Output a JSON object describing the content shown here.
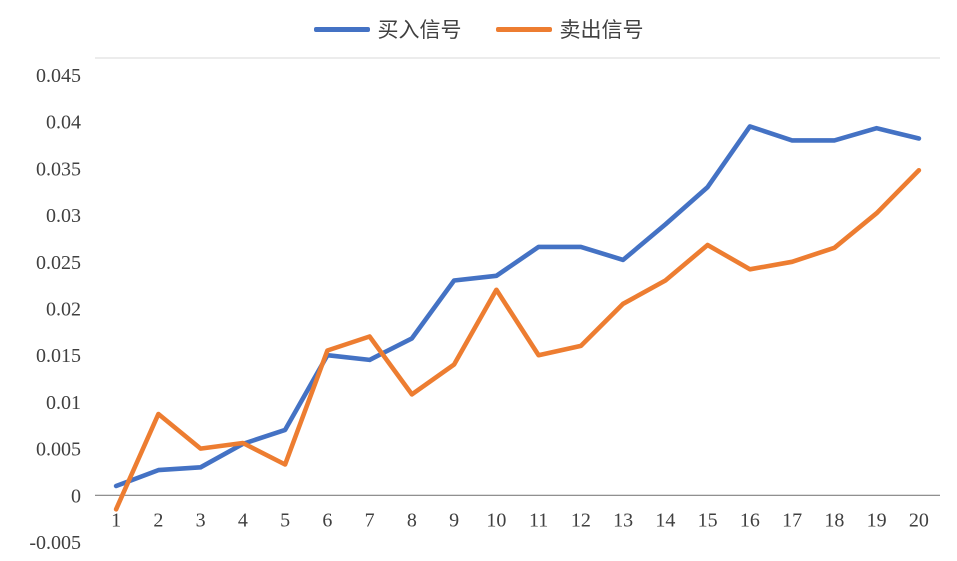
{
  "legend": [
    {
      "label": "买入信号",
      "color": "#4472C4"
    },
    {
      "label": "卖出信号",
      "color": "#ED7D31"
    }
  ],
  "chart_data": {
    "type": "line",
    "title": "",
    "xlabel": "",
    "ylabel": "",
    "x": [
      1,
      2,
      3,
      4,
      5,
      6,
      7,
      8,
      9,
      10,
      11,
      12,
      13,
      14,
      15,
      16,
      17,
      18,
      19,
      20
    ],
    "series": [
      {
        "name": "买入信号",
        "color": "#4472C4",
        "values": [
          0.001,
          0.0027,
          0.003,
          0.0055,
          0.007,
          0.015,
          0.0145,
          0.0168,
          0.023,
          0.0235,
          0.0266,
          0.0266,
          0.0252,
          0.029,
          0.033,
          0.0395,
          0.038,
          0.038,
          0.0393,
          0.0382
        ]
      },
      {
        "name": "卖出信号",
        "color": "#ED7D31",
        "values": [
          -0.0015,
          0.0087,
          0.005,
          0.0056,
          0.0033,
          0.0155,
          0.017,
          0.0108,
          0.014,
          0.022,
          0.015,
          0.016,
          0.0205,
          0.023,
          0.0268,
          0.0242,
          0.025,
          0.0265,
          0.0302,
          0.0348
        ]
      }
    ],
    "ylim": [
      -0.005,
      0.045
    ],
    "yticks": [
      {
        "value": 0.045,
        "label": "0.045"
      },
      {
        "value": 0.04,
        "label": "0.04"
      },
      {
        "value": 0.035,
        "label": "0.035"
      },
      {
        "value": 0.03,
        "label": "0.03"
      },
      {
        "value": 0.025,
        "label": "0.025"
      },
      {
        "value": 0.02,
        "label": "0.02"
      },
      {
        "value": 0.015,
        "label": "0.015"
      },
      {
        "value": 0.01,
        "label": "0.01"
      },
      {
        "value": 0.005,
        "label": "0.005"
      },
      {
        "value": 0,
        "label": "0"
      },
      {
        "value": -0.005,
        "label": "-0.005"
      }
    ],
    "xticks": [
      "1",
      "2",
      "3",
      "4",
      "5",
      "6",
      "7",
      "8",
      "9",
      "10",
      "11",
      "12",
      "13",
      "14",
      "15",
      "16",
      "17",
      "18",
      "19",
      "20"
    ],
    "grid": false,
    "legend_position": "top",
    "axis_color": "#808080",
    "tick_label_color": "#404040",
    "plot_top_border_color": "#d9d9d9"
  }
}
